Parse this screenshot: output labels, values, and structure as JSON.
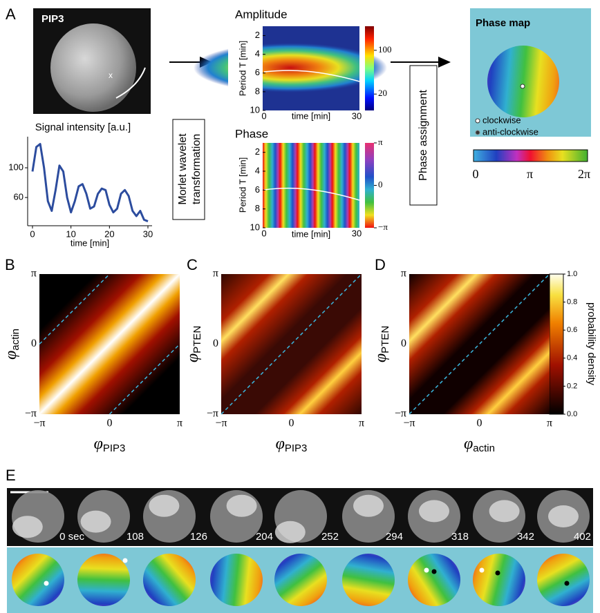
{
  "panel_a": {
    "label": "A",
    "cell_image_label": "PIP3",
    "signal_trace": {
      "type": "line",
      "title": "Signal intensity [a.u.]",
      "x_label": "time [min]",
      "x": [
        0,
        1,
        2,
        3,
        4,
        5,
        6,
        7,
        8,
        9,
        10,
        11,
        12,
        13,
        14,
        15,
        16,
        17,
        18,
        19,
        20,
        21,
        22,
        23,
        24,
        25,
        26,
        27,
        28,
        29,
        30
      ],
      "values": [
        95,
        128,
        132,
        100,
        55,
        42,
        70,
        103,
        95,
        60,
        40,
        55,
        75,
        78,
        65,
        45,
        48,
        65,
        72,
        70,
        50,
        40,
        45,
        65,
        70,
        62,
        42,
        35,
        42,
        30,
        28
      ],
      "xlim": [
        0,
        30
      ],
      "ylim": [
        22,
        140
      ],
      "xticks": [
        0,
        10,
        20,
        30
      ],
      "yticks": [
        60,
        100
      ],
      "color": "#2c4c9e"
    },
    "wavelet_step": [
      "Morlet wavelet",
      "transformation"
    ],
    "amplitude": {
      "type": "heatmap",
      "title": "Amplitude",
      "y_label": "Period T [min]",
      "x_label": "time [min]",
      "xlim": [
        0,
        30
      ],
      "xticks": [
        0,
        30
      ],
      "ylim": [
        1,
        10
      ],
      "yticks": [
        2,
        4,
        6,
        8,
        10
      ],
      "clim": [
        -10,
        144
      ],
      "cticks": [
        100,
        20
      ]
    },
    "phase": {
      "type": "heatmap",
      "title": "Phase",
      "y_label": "Period T [min]",
      "x_label": "time [min]",
      "xlim": [
        0,
        30
      ],
      "xticks": [
        0,
        30
      ],
      "ylim": [
        1,
        10
      ],
      "yticks": [
        2,
        4,
        6,
        8,
        10
      ],
      "clim": [
        -3.14159,
        3.14159
      ],
      "cticks": [
        {
          "value": 3.14159,
          "label": "π"
        },
        0,
        {
          "value": -3.14159,
          "label": "−π"
        }
      ]
    },
    "phase_step": "Phase assignment",
    "phase_map": {
      "title": "Phase map",
      "legend": [
        "clockwise",
        "anti-clockwise"
      ],
      "clim": [
        0,
        6.28318
      ],
      "cticks": [
        0,
        {
          "value": 3.14159,
          "label": "π"
        },
        {
          "value": 6.28318,
          "label": "2π"
        }
      ]
    }
  },
  "correlation_axes": {
    "lim": [
      -3.14159,
      3.14159
    ],
    "ticks": [
      {
        "value": -3.14159,
        "label": "−π"
      },
      0,
      {
        "value": 3.14159,
        "label": "π"
      }
    ]
  },
  "correlation_panels": [
    {
      "label": "B",
      "y_symbol": "φ",
      "y_subscript": "actin",
      "x_symbol": "φ",
      "x_subscript": "PIP3"
    },
    {
      "label": "C",
      "y_symbol": "φ",
      "y_subscript": "PTEN",
      "x_symbol": "φ",
      "x_subscript": "PIP3"
    },
    {
      "label": "D",
      "y_symbol": "φ",
      "y_subscript": "PTEN",
      "x_symbol": "φ",
      "x_subscript": "actin"
    }
  ],
  "density_colorbar": {
    "label": "probability density",
    "clim": [
      0,
      1
    ],
    "cticks": [
      {
        "value": 1,
        "label": "1.0"
      },
      {
        "value": 0.8,
        "label": "0.8"
      },
      {
        "value": 0.6,
        "label": "0.6"
      },
      {
        "value": 0.4,
        "label": "0.4"
      },
      {
        "value": 0.2,
        "label": "0.2"
      },
      {
        "value": 0,
        "label": "0.0"
      }
    ]
  },
  "panel_e": {
    "label": "E",
    "times": [
      "0 sec",
      "108",
      "126",
      "204",
      "252",
      "294",
      "318",
      "342",
      "402"
    ]
  }
}
